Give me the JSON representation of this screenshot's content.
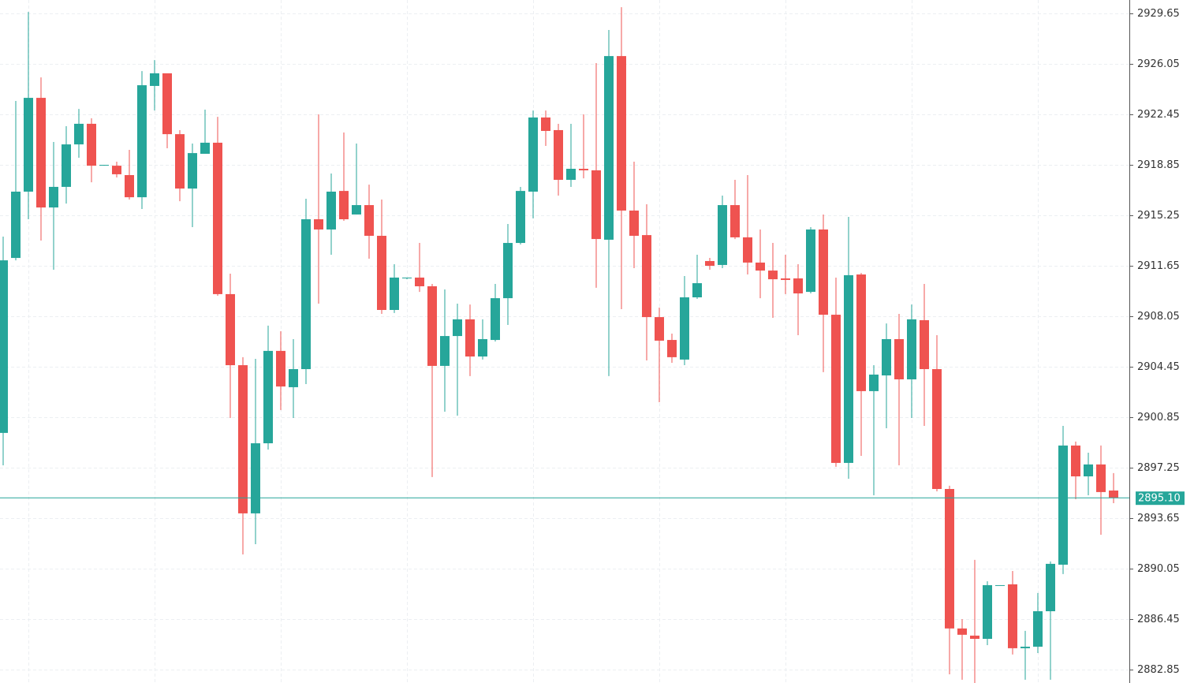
{
  "chart_data": {
    "type": "candlestick",
    "up_color": "#26a69a",
    "down_color": "#ef5350",
    "ylim": [
      2881.89,
      2930.61
    ],
    "yticks": [
      2929.65,
      2926.05,
      2922.45,
      2918.85,
      2915.25,
      2911.65,
      2908.05,
      2904.45,
      2900.85,
      2897.25,
      2893.65,
      2890.05,
      2886.45,
      2882.85
    ],
    "grid": true,
    "last_price": {
      "value": 2895.1,
      "label": "2895.10"
    },
    "open": [
      2899.73,
      2912.21,
      2916.94,
      2923.63,
      2915.81,
      2917.28,
      2920.31,
      2921.78,
      2918.85,
      2918.79,
      2918.12,
      2916.54,
      2924.48,
      2925.38,
      2921.04,
      2917.16,
      2919.64,
      2920.43,
      2909.63,
      2904.56,
      2893.99,
      2898.99,
      2905.58,
      2902.99,
      2904.28,
      2914.97,
      2914.24,
      2916.99,
      2915.31,
      2915.98,
      2913.79,
      2908.5,
      2910.81,
      2910.81,
      2910.19,
      2904.51,
      2906.64,
      2907.83,
      2905.18,
      2906.36,
      2909.34,
      2913.28,
      2916.94,
      2922.23,
      2921.33,
      2917.78,
      2918.57,
      2918.46,
      2913.51,
      2926.61,
      2915.59,
      2913.84,
      2907.99,
      2906.36,
      2904.96,
      2909.4,
      2911.99,
      2911.71,
      2915.98,
      2913.68,
      2911.88,
      2911.31,
      2910.75,
      2910.75,
      2909.79,
      2914.24,
      2908.16,
      2897.59,
      2911.03,
      2902.71,
      2903.83,
      2906.42,
      2903.55,
      2907.77,
      2904.28,
      2895.73,
      2885.78,
      2885.27,
      2885.04,
      2888.87,
      2888.93,
      2884.37,
      2884.48,
      2887.01,
      2890.33,
      2898.83,
      2896.63,
      2897.48,
      2895.62
    ],
    "high": [
      2913.73,
      2923.41,
      2929.76,
      2925.09,
      2920.48,
      2921.61,
      2922.84,
      2922.17,
      2918.85,
      2919.08,
      2919.92,
      2925.54,
      2926.33,
      2925.38,
      2921.33,
      2920.37,
      2922.79,
      2922.28,
      2911.09,
      2905.13,
      2905.01,
      2907.38,
      2906.98,
      2906.42,
      2916.43,
      2922.45,
      2918.23,
      2921.16,
      2920.37,
      2917.44,
      2916.38,
      2911.76,
      2910.81,
      2913.28,
      2910.36,
      2909.96,
      2908.95,
      2908.89,
      2907.83,
      2910.36,
      2914.63,
      2917.28,
      2922.73,
      2922.73,
      2921.78,
      2921.78,
      2922.45,
      2926.11,
      2928.47,
      2930.1,
      2919.08,
      2916.04,
      2908.67,
      2906.81,
      2910.92,
      2912.44,
      2912.21,
      2916.66,
      2917.78,
      2918.12,
      2914.24,
      2913.28,
      2912.44,
      2911.76,
      2914.41,
      2915.31,
      2910.81,
      2915.14,
      2911.14,
      2904.56,
      2907.54,
      2908.22,
      2908.89,
      2910.36,
      2906.7,
      2895.96,
      2886.45,
      2890.67,
      2889.15,
      2888.87,
      2889.88,
      2885.61,
      2888.31,
      2890.56,
      2900.23,
      2899.11,
      2898.32,
      2898.83,
      2896.86
    ],
    "low": [
      2897.42,
      2912.04,
      2914.97,
      2913.45,
      2911.37,
      2916.09,
      2919.36,
      2917.61,
      2918.79,
      2917.95,
      2916.38,
      2915.7,
      2922.73,
      2920.03,
      2916.26,
      2914.41,
      2919.64,
      2909.51,
      2900.79,
      2891.06,
      2891.79,
      2898.54,
      2901.36,
      2900.79,
      2903.21,
      2908.95,
      2912.44,
      2914.86,
      2915.31,
      2912.16,
      2908.22,
      2908.28,
      2910.69,
      2909.79,
      2896.58,
      2901.24,
      2900.96,
      2903.78,
      2904.96,
      2906.25,
      2907.43,
      2913.17,
      2915.03,
      2920.2,
      2916.66,
      2917.28,
      2917.89,
      2910.08,
      2903.78,
      2908.56,
      2911.48,
      2904.9,
      2901.92,
      2904.73,
      2904.56,
      2909.29,
      2911.37,
      2911.48,
      2913.56,
      2911.03,
      2909.34,
      2907.94,
      2909.63,
      2906.7,
      2909.68,
      2904.06,
      2897.31,
      2896.46,
      2898.09,
      2895.28,
      2900.06,
      2897.42,
      2900.79,
      2900.23,
      2895.56,
      2882.51,
      2882.12,
      2881.89,
      2884.59,
      2888.87,
      2883.92,
      2882.12,
      2884.03,
      2882.12,
      2889.66,
      2895.0,
      2895.28,
      2892.47,
      2894.72
    ],
    "close": [
      2912.04,
      2916.94,
      2923.63,
      2915.81,
      2917.28,
      2920.31,
      2921.78,
      2918.79,
      2918.85,
      2918.18,
      2916.54,
      2924.53,
      2925.38,
      2921.04,
      2917.16,
      2919.69,
      2920.43,
      2909.63,
      2904.56,
      2893.99,
      2898.99,
      2905.58,
      2903.04,
      2904.28,
      2914.97,
      2914.24,
      2916.94,
      2914.97,
      2915.98,
      2913.79,
      2908.5,
      2910.81,
      2910.81,
      2910.19,
      2904.51,
      2906.64,
      2907.83,
      2905.18,
      2906.42,
      2909.34,
      2913.28,
      2916.99,
      2922.23,
      2921.27,
      2917.78,
      2918.57,
      2918.46,
      2913.56,
      2926.61,
      2915.59,
      2913.79,
      2907.99,
      2906.31,
      2905.13,
      2909.4,
      2910.41,
      2911.65,
      2915.98,
      2913.68,
      2911.88,
      2911.31,
      2910.69,
      2910.64,
      2909.68,
      2914.24,
      2908.16,
      2897.59,
      2910.98,
      2902.71,
      2903.89,
      2906.42,
      2903.55,
      2907.83,
      2904.28,
      2895.73,
      2885.78,
      2885.33,
      2885.04,
      2888.87,
      2888.87,
      2884.37,
      2884.48,
      2887.01,
      2890.39,
      2898.83,
      2896.63,
      2897.48,
      2895.51,
      2895.1
    ]
  }
}
